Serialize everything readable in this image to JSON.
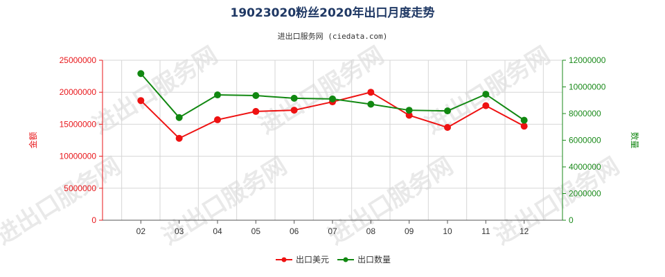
{
  "chart_data": {
    "type": "line",
    "title": "19023020粉丝2020年出口月度走势",
    "subtitle": "进出口服务网 (ciedata.com)",
    "categories": [
      "02",
      "03",
      "04",
      "05",
      "06",
      "07",
      "08",
      "09",
      "10",
      "11",
      "12"
    ],
    "y_left": {
      "label": "金额",
      "range": [
        0,
        25000000
      ],
      "ticks": [
        0,
        5000000,
        10000000,
        15000000,
        20000000,
        25000000
      ],
      "tick_labels": [
        "0",
        "5000000",
        "10000000",
        "15000000",
        "20000000",
        "25000000"
      ],
      "color": "#e8161a"
    },
    "y_right": {
      "label": "数量",
      "range": [
        0,
        12000000
      ],
      "ticks": [
        0,
        2000000,
        4000000,
        6000000,
        8000000,
        10000000,
        12000000
      ],
      "tick_labels": [
        "0",
        "2000000",
        "4000000",
        "6000000",
        "8000000",
        "10000000",
        "12000000"
      ],
      "color": "#1a8a1a"
    },
    "series": [
      {
        "name": "出口美元",
        "axis": "left",
        "color": "#ee1111",
        "values": [
          18700000,
          12800000,
          15700000,
          17000000,
          17200000,
          18500000,
          20000000,
          16400000,
          14500000,
          17900000,
          14700000
        ]
      },
      {
        "name": "出口数量",
        "axis": "right",
        "color": "#118811",
        "values": [
          11000000,
          7700000,
          9400000,
          9350000,
          9150000,
          9100000,
          8700000,
          8250000,
          8200000,
          9450000,
          7500000
        ]
      }
    ],
    "grid": true,
    "legend_position": "bottom-center"
  },
  "watermark": "进出口服务网"
}
